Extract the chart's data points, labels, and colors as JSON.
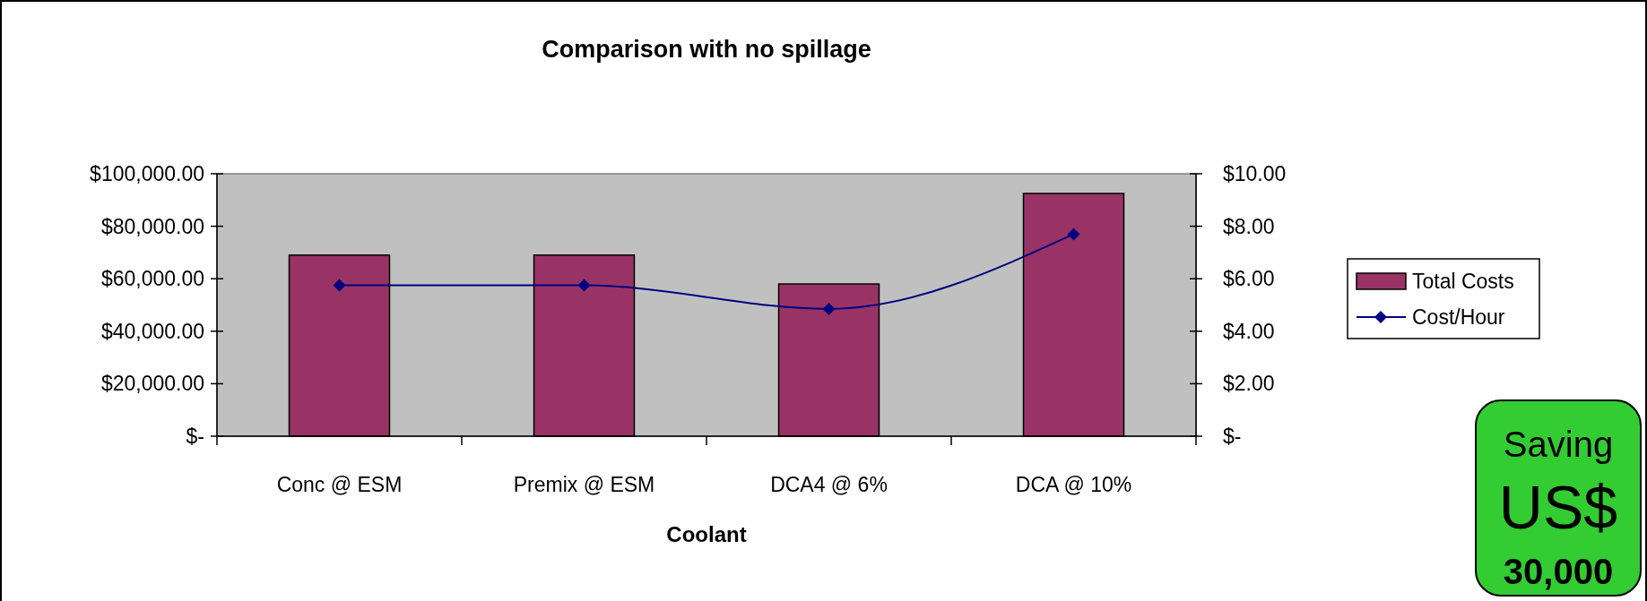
{
  "chart_data": {
    "type": "bar",
    "title": "Comparison with no spillage",
    "xlabel": "Coolant",
    "categories": [
      "Conc @ ESM",
      "Premix @ ESM",
      "DCA4 @ 6%",
      "DCA @ 10%"
    ],
    "series": [
      {
        "name": "Total Costs",
        "color": "#993366",
        "values": [
          69000,
          69000,
          58000,
          92500
        ]
      },
      {
        "name": "Cost/Hour",
        "type": "line",
        "axis": "y2",
        "color": "#000080",
        "values": [
          5.75,
          5.75,
          4.85,
          7.7
        ]
      }
    ],
    "ylim": [
      0,
      100000
    ],
    "yticks": [
      {
        "value": 0,
        "label": "$-"
      },
      {
        "value": 20000,
        "label": "$20,000.00"
      },
      {
        "value": 40000,
        "label": "$40,000.00"
      },
      {
        "value": 60000,
        "label": "$60,000.00"
      },
      {
        "value": 80000,
        "label": "$80,000.00"
      },
      {
        "value": 100000,
        "label": "$100,000.00"
      }
    ],
    "y2lim": [
      0,
      10
    ],
    "y2ticks": [
      {
        "value": 0,
        "label": "$-"
      },
      {
        "value": 2,
        "label": "$2.00"
      },
      {
        "value": 4,
        "label": "$4.00"
      },
      {
        "value": 6,
        "label": "$6.00"
      },
      {
        "value": 8,
        "label": "$8.00"
      },
      {
        "value": 10,
        "label": "$10.00"
      }
    ],
    "legend": "right",
    "grid": false,
    "marker": "diamond",
    "line_style": "solid",
    "annotations": [
      "Saving",
      "US$",
      "30,000"
    ]
  }
}
